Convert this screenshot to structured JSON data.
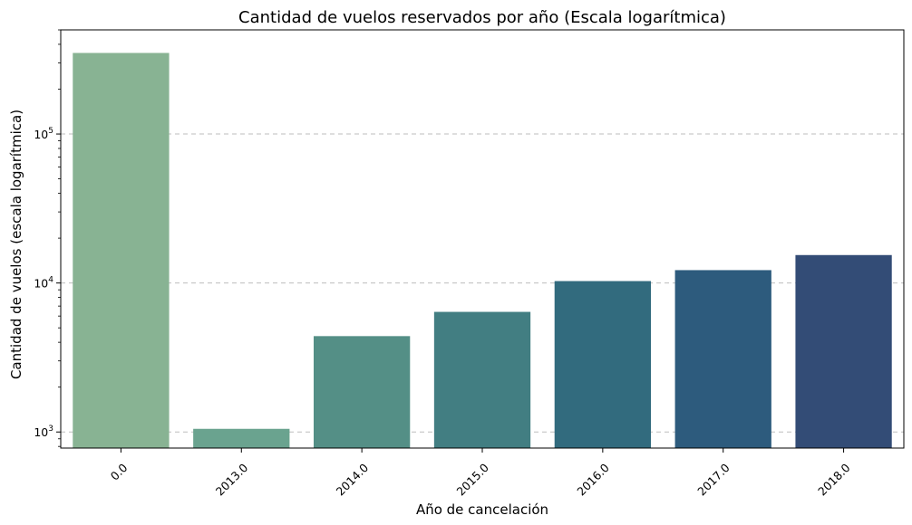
{
  "chart_data": {
    "type": "bar",
    "title": "Cantidad de vuelos reservados por año (Escala logarítmica)",
    "xlabel": "Año de cancelación",
    "ylabel": "Cantidad de vuelos (escala logarítmica)",
    "yscale": "log",
    "ylim": [
      780,
      500000
    ],
    "grid": "y-major dashed",
    "categories": [
      "0.0",
      "2013.0",
      "2014.0",
      "2015.0",
      "2016.0",
      "2017.0",
      "2018.0"
    ],
    "values": [
      350000,
      1050,
      4400,
      6400,
      10300,
      12200,
      15400
    ],
    "colors": [
      "#88b393",
      "#6aa38f",
      "#548f86",
      "#427e82",
      "#326b7e",
      "#2d5b7d",
      "#334c76"
    ],
    "yticks": [
      {
        "base": "10",
        "exp": "3",
        "value": 1000
      },
      {
        "base": "10",
        "exp": "4",
        "value": 10000
      },
      {
        "base": "10",
        "exp": "5",
        "value": 100000
      }
    ]
  }
}
